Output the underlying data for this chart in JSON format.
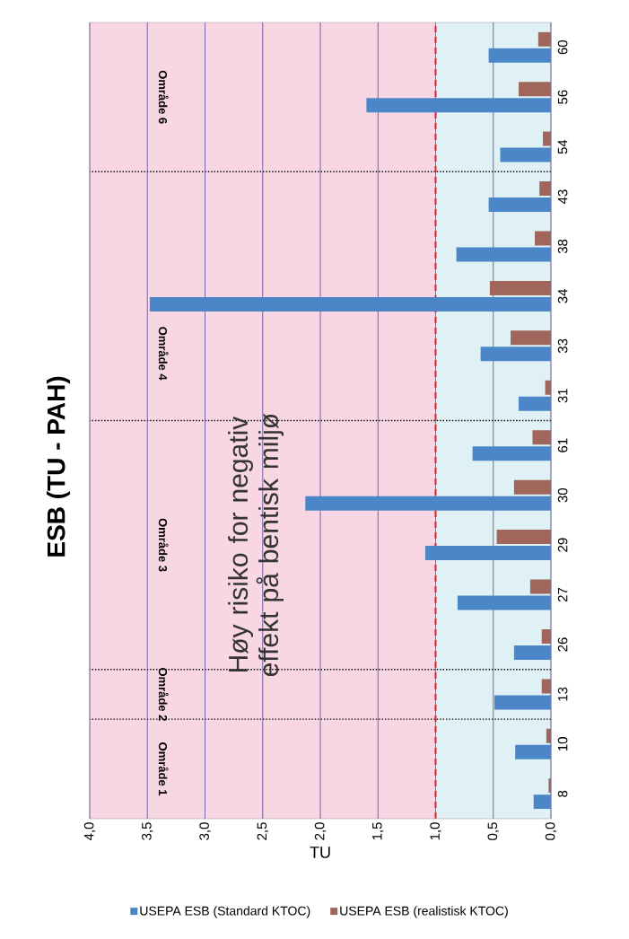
{
  "chart_data": {
    "type": "bar",
    "orientation": "horizontal",
    "title": "ESB (TU - PAH)",
    "xlabel": "TU",
    "categories": [
      "60",
      "56",
      "54",
      "43",
      "38",
      "34",
      "33",
      "31",
      "61",
      "30",
      "29",
      "27",
      "26",
      "13",
      "10",
      "8"
    ],
    "series": [
      {
        "name": "USEPA ESB (Standard KTOC)",
        "color": "#4a86c8",
        "values": [
          0.54,
          1.6,
          0.44,
          0.54,
          0.82,
          3.48,
          0.61,
          0.28,
          0.68,
          2.13,
          1.09,
          0.81,
          0.32,
          0.49,
          0.31,
          0.15
        ]
      },
      {
        "name": "USEPA ESB (realistisk KTOC)",
        "color": "#a0665c",
        "values": [
          0.11,
          0.28,
          0.07,
          0.1,
          0.14,
          0.53,
          0.35,
          0.05,
          0.16,
          0.32,
          0.47,
          0.18,
          0.08,
          0.08,
          0.04,
          0.02
        ]
      }
    ],
    "xlim": [
      4,
      0
    ],
    "xticks": [
      {
        "value": 0,
        "label": "0,0"
      },
      {
        "value": 0.5,
        "label": "0,5"
      },
      {
        "value": 1,
        "label": "1,0"
      },
      {
        "value": 1.5,
        "label": "1,5"
      },
      {
        "value": 2,
        "label": "2,0"
      },
      {
        "value": 2.5,
        "label": "2,5"
      },
      {
        "value": 3,
        "label": "3,0"
      },
      {
        "value": 3.5,
        "label": "3,5"
      },
      {
        "value": 4,
        "label": "4,0"
      }
    ],
    "grid": "x",
    "legend": "bottom",
    "bands": [
      {
        "axis": "x",
        "from": 1,
        "to": 4,
        "color": "#f9d6e4",
        "label": "Høy risiko for negativ effekt på bentisk miljø"
      },
      {
        "axis": "x",
        "from": 0,
        "to": 1,
        "color": "#e0f1f6"
      }
    ],
    "ref_lines": [
      {
        "axis": "x",
        "value": 1,
        "color": "#e02828",
        "line_style": "dashed"
      }
    ],
    "annotations": [
      "Område 6",
      "Område 4",
      "Område 3",
      "Område 2",
      "Område 1"
    ]
  }
}
